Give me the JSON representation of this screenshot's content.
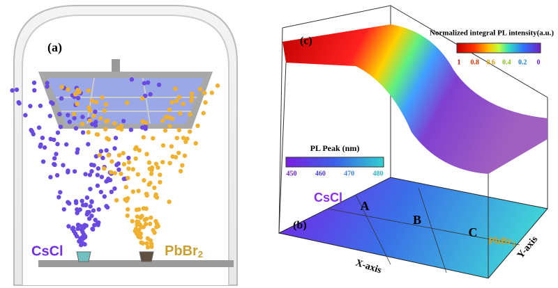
{
  "panel_a": {
    "label": "(a)",
    "source_left": "CsCl",
    "source_right_base": "PbBr",
    "source_right_sub": "2"
  },
  "panel_c": {
    "label": "(c)",
    "colorbar_title": "Normalized integral PL intensity(a.u.)",
    "colorbar_ticks": [
      1,
      0.8,
      0.6,
      0.4,
      0.2,
      0
    ]
  },
  "panel_b": {
    "label": "(b)",
    "colorbar_title": "PL Peak (nm)",
    "colorbar_ticks": [
      450,
      460,
      470,
      480
    ],
    "regions": [
      "A",
      "B",
      "C"
    ],
    "corner_left": "CsCl",
    "corner_right_base": "PbBr",
    "corner_right_sub": "2",
    "x_axis": "X-axis",
    "y_axis": "Y-axis"
  }
}
